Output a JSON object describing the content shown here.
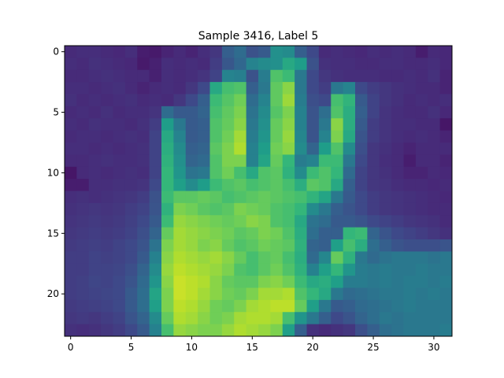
{
  "chart_data": {
    "type": "heatmap",
    "title": "Sample 3416, Label 5",
    "xlabel": "",
    "ylabel": "",
    "colormap": "viridis",
    "x_ticks": [
      0,
      5,
      10,
      15,
      20,
      25,
      30
    ],
    "y_ticks": [
      0,
      5,
      10,
      15,
      20
    ],
    "xlim": [
      -0.5,
      31.5
    ],
    "ylim": [
      23.5,
      -0.5
    ],
    "value_range": [
      0,
      1
    ],
    "grid": false,
    "z": [
      [
        0.12,
        0.13,
        0.13,
        0.12,
        0.11,
        0.13,
        0.08,
        0.07,
        0.1,
        0.12,
        0.1,
        0.13,
        0.16,
        0.3,
        0.35,
        0.25,
        0.28,
        0.5,
        0.48,
        0.3,
        0.22,
        0.12,
        0.13,
        0.12,
        0.11,
        0.13,
        0.12,
        0.13,
        0.12,
        0.08,
        0.12,
        0.11
      ],
      [
        0.13,
        0.12,
        0.14,
        0.13,
        0.12,
        0.11,
        0.07,
        0.09,
        0.13,
        0.12,
        0.13,
        0.12,
        0.18,
        0.27,
        0.33,
        0.45,
        0.48,
        0.5,
        0.6,
        0.55,
        0.25,
        0.14,
        0.13,
        0.13,
        0.12,
        0.12,
        0.13,
        0.13,
        0.12,
        0.12,
        0.13,
        0.11
      ],
      [
        0.12,
        0.12,
        0.13,
        0.14,
        0.13,
        0.12,
        0.12,
        0.09,
        0.13,
        0.12,
        0.13,
        0.15,
        0.2,
        0.45,
        0.43,
        0.25,
        0.42,
        0.72,
        0.68,
        0.4,
        0.22,
        0.16,
        0.14,
        0.13,
        0.13,
        0.13,
        0.12,
        0.12,
        0.13,
        0.12,
        0.14,
        0.1
      ],
      [
        0.13,
        0.13,
        0.12,
        0.13,
        0.14,
        0.12,
        0.1,
        0.12,
        0.13,
        0.12,
        0.16,
        0.22,
        0.6,
        0.7,
        0.72,
        0.3,
        0.4,
        0.75,
        0.82,
        0.4,
        0.22,
        0.18,
        0.4,
        0.45,
        0.22,
        0.18,
        0.16,
        0.14,
        0.13,
        0.12,
        0.12,
        0.1
      ],
      [
        0.14,
        0.12,
        0.13,
        0.12,
        0.13,
        0.14,
        0.12,
        0.13,
        0.12,
        0.16,
        0.22,
        0.3,
        0.68,
        0.73,
        0.78,
        0.35,
        0.45,
        0.75,
        0.85,
        0.42,
        0.24,
        0.22,
        0.7,
        0.65,
        0.28,
        0.2,
        0.16,
        0.14,
        0.12,
        0.13,
        0.12,
        0.13
      ],
      [
        0.12,
        0.13,
        0.12,
        0.14,
        0.12,
        0.13,
        0.13,
        0.15,
        0.35,
        0.28,
        0.28,
        0.32,
        0.7,
        0.75,
        0.8,
        0.38,
        0.48,
        0.73,
        0.8,
        0.44,
        0.26,
        0.36,
        0.72,
        0.62,
        0.3,
        0.2,
        0.15,
        0.13,
        0.12,
        0.12,
        0.14,
        0.11
      ],
      [
        0.13,
        0.12,
        0.14,
        0.13,
        0.13,
        0.12,
        0.14,
        0.18,
        0.55,
        0.4,
        0.28,
        0.3,
        0.72,
        0.76,
        0.82,
        0.4,
        0.5,
        0.76,
        0.82,
        0.44,
        0.26,
        0.4,
        0.82,
        0.62,
        0.28,
        0.18,
        0.15,
        0.13,
        0.13,
        0.12,
        0.12,
        0.06
      ],
      [
        0.12,
        0.13,
        0.13,
        0.12,
        0.13,
        0.14,
        0.13,
        0.2,
        0.6,
        0.45,
        0.28,
        0.3,
        0.72,
        0.78,
        0.86,
        0.42,
        0.52,
        0.76,
        0.84,
        0.46,
        0.26,
        0.45,
        0.8,
        0.6,
        0.26,
        0.18,
        0.15,
        0.13,
        0.12,
        0.13,
        0.12,
        0.1
      ],
      [
        0.13,
        0.13,
        0.12,
        0.13,
        0.12,
        0.13,
        0.14,
        0.2,
        0.62,
        0.48,
        0.3,
        0.32,
        0.74,
        0.8,
        0.88,
        0.44,
        0.55,
        0.78,
        0.82,
        0.48,
        0.32,
        0.55,
        0.72,
        0.48,
        0.24,
        0.16,
        0.14,
        0.12,
        0.1,
        0.12,
        0.12,
        0.12
      ],
      [
        0.12,
        0.12,
        0.13,
        0.14,
        0.13,
        0.13,
        0.14,
        0.2,
        0.64,
        0.5,
        0.32,
        0.34,
        0.72,
        0.8,
        0.8,
        0.44,
        0.58,
        0.76,
        0.66,
        0.42,
        0.45,
        0.68,
        0.68,
        0.4,
        0.22,
        0.16,
        0.13,
        0.12,
        0.08,
        0.12,
        0.12,
        0.1
      ],
      [
        0.06,
        0.12,
        0.13,
        0.12,
        0.13,
        0.14,
        0.13,
        0.2,
        0.66,
        0.52,
        0.38,
        0.4,
        0.72,
        0.78,
        0.7,
        0.6,
        0.72,
        0.74,
        0.64,
        0.48,
        0.68,
        0.72,
        0.66,
        0.34,
        0.2,
        0.16,
        0.14,
        0.12,
        0.1,
        0.1,
        0.12,
        0.11
      ],
      [
        0.08,
        0.08,
        0.13,
        0.13,
        0.14,
        0.14,
        0.15,
        0.22,
        0.66,
        0.56,
        0.48,
        0.55,
        0.68,
        0.72,
        0.74,
        0.7,
        0.72,
        0.74,
        0.7,
        0.62,
        0.74,
        0.72,
        0.6,
        0.3,
        0.2,
        0.16,
        0.15,
        0.13,
        0.12,
        0.12,
        0.11,
        0.12
      ],
      [
        0.13,
        0.14,
        0.13,
        0.14,
        0.15,
        0.16,
        0.18,
        0.25,
        0.68,
        0.74,
        0.74,
        0.76,
        0.74,
        0.7,
        0.72,
        0.74,
        0.76,
        0.74,
        0.72,
        0.7,
        0.65,
        0.58,
        0.4,
        0.28,
        0.22,
        0.18,
        0.16,
        0.15,
        0.14,
        0.13,
        0.12,
        0.11
      ],
      [
        0.14,
        0.15,
        0.16,
        0.15,
        0.16,
        0.18,
        0.2,
        0.26,
        0.64,
        0.8,
        0.78,
        0.74,
        0.72,
        0.74,
        0.8,
        0.78,
        0.76,
        0.72,
        0.7,
        0.66,
        0.48,
        0.4,
        0.3,
        0.26,
        0.22,
        0.18,
        0.16,
        0.15,
        0.14,
        0.13,
        0.12,
        0.12
      ],
      [
        0.15,
        0.16,
        0.17,
        0.16,
        0.17,
        0.19,
        0.22,
        0.28,
        0.68,
        0.84,
        0.82,
        0.8,
        0.78,
        0.76,
        0.78,
        0.82,
        0.8,
        0.72,
        0.7,
        0.6,
        0.38,
        0.35,
        0.28,
        0.28,
        0.26,
        0.22,
        0.2,
        0.18,
        0.16,
        0.15,
        0.14,
        0.12
      ],
      [
        0.16,
        0.17,
        0.18,
        0.17,
        0.18,
        0.2,
        0.24,
        0.32,
        0.76,
        0.86,
        0.84,
        0.82,
        0.8,
        0.78,
        0.74,
        0.76,
        0.8,
        0.78,
        0.72,
        0.62,
        0.36,
        0.3,
        0.3,
        0.66,
        0.68,
        0.32,
        0.26,
        0.22,
        0.2,
        0.18,
        0.16,
        0.14
      ],
      [
        0.17,
        0.18,
        0.19,
        0.18,
        0.2,
        0.22,
        0.26,
        0.38,
        0.8,
        0.86,
        0.84,
        0.8,
        0.82,
        0.76,
        0.72,
        0.74,
        0.78,
        0.76,
        0.74,
        0.64,
        0.32,
        0.3,
        0.56,
        0.7,
        0.62,
        0.36,
        0.3,
        0.26,
        0.24,
        0.24,
        0.24,
        0.26
      ],
      [
        0.18,
        0.18,
        0.2,
        0.19,
        0.2,
        0.22,
        0.28,
        0.44,
        0.82,
        0.88,
        0.86,
        0.84,
        0.86,
        0.82,
        0.76,
        0.7,
        0.74,
        0.76,
        0.7,
        0.62,
        0.34,
        0.46,
        0.76,
        0.64,
        0.4,
        0.34,
        0.38,
        0.4,
        0.4,
        0.4,
        0.38,
        0.4
      ],
      [
        0.18,
        0.18,
        0.2,
        0.2,
        0.21,
        0.24,
        0.32,
        0.48,
        0.84,
        0.9,
        0.88,
        0.86,
        0.84,
        0.8,
        0.72,
        0.7,
        0.74,
        0.78,
        0.72,
        0.64,
        0.44,
        0.56,
        0.66,
        0.52,
        0.42,
        0.4,
        0.42,
        0.4,
        0.4,
        0.42,
        0.4,
        0.4
      ],
      [
        0.18,
        0.19,
        0.21,
        0.2,
        0.22,
        0.26,
        0.34,
        0.52,
        0.82,
        0.92,
        0.9,
        0.88,
        0.82,
        0.76,
        0.74,
        0.74,
        0.8,
        0.82,
        0.78,
        0.68,
        0.6,
        0.62,
        0.56,
        0.42,
        0.42,
        0.4,
        0.42,
        0.4,
        0.42,
        0.42,
        0.4,
        0.42
      ],
      [
        0.18,
        0.19,
        0.2,
        0.21,
        0.22,
        0.28,
        0.36,
        0.58,
        0.8,
        0.92,
        0.9,
        0.86,
        0.82,
        0.78,
        0.76,
        0.8,
        0.86,
        0.86,
        0.88,
        0.72,
        0.66,
        0.6,
        0.4,
        0.34,
        0.36,
        0.38,
        0.4,
        0.4,
        0.42,
        0.4,
        0.42,
        0.4
      ],
      [
        0.17,
        0.18,
        0.19,
        0.2,
        0.22,
        0.28,
        0.36,
        0.56,
        0.8,
        0.9,
        0.88,
        0.84,
        0.78,
        0.76,
        0.8,
        0.86,
        0.88,
        0.9,
        0.9,
        0.76,
        0.56,
        0.4,
        0.28,
        0.3,
        0.34,
        0.36,
        0.38,
        0.4,
        0.42,
        0.4,
        0.4,
        0.4
      ],
      [
        0.16,
        0.17,
        0.16,
        0.18,
        0.2,
        0.26,
        0.32,
        0.48,
        0.76,
        0.88,
        0.86,
        0.82,
        0.78,
        0.8,
        0.86,
        0.88,
        0.88,
        0.86,
        0.7,
        0.52,
        0.4,
        0.3,
        0.22,
        0.26,
        0.32,
        0.36,
        0.4,
        0.38,
        0.4,
        0.4,
        0.4,
        0.4
      ],
      [
        0.14,
        0.13,
        0.14,
        0.16,
        0.18,
        0.22,
        0.28,
        0.44,
        0.7,
        0.84,
        0.82,
        0.8,
        0.8,
        0.84,
        0.88,
        0.86,
        0.84,
        0.8,
        0.56,
        0.3,
        0.14,
        0.12,
        0.14,
        0.16,
        0.24,
        0.3,
        0.36,
        0.38,
        0.4,
        0.4,
        0.4,
        0.42
      ]
    ]
  }
}
